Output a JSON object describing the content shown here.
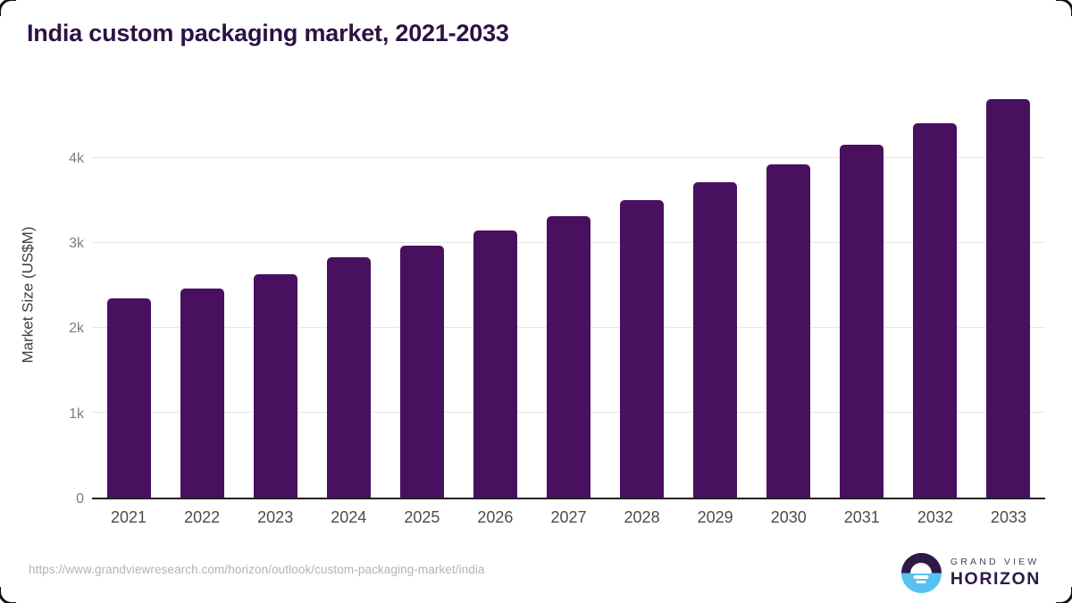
{
  "header": {
    "title": "India custom packaging market, 2021-2033"
  },
  "footer": {
    "source_url": "https://www.grandviewresearch.com/horizon/outlook/custom-packaging-market/india",
    "logo": {
      "top_text": "GRAND VIEW",
      "bottom_text": "HORIZON"
    }
  },
  "colors": {
    "bar": "#4a1060",
    "title": "#2d1245",
    "gridline": "#e7e7e7",
    "axis_line": "#222222",
    "logo_purple": "#2e1a47",
    "logo_blue": "#56c2f1"
  },
  "chart_data": {
    "type": "bar",
    "title": "India custom packaging market, 2021-2033",
    "xlabel": "",
    "ylabel": "Market Size (US$M)",
    "unit": "US$M",
    "categories": [
      "2021",
      "2022",
      "2023",
      "2024",
      "2025",
      "2026",
      "2027",
      "2028",
      "2029",
      "2030",
      "2031",
      "2032",
      "2033"
    ],
    "values": [
      2355,
      2470,
      2640,
      2835,
      2975,
      3150,
      3320,
      3505,
      3715,
      3930,
      4165,
      4415,
      4700
    ],
    "ylim": [
      0,
      4816
    ],
    "yticks": [
      {
        "value": 0,
        "label": "0"
      },
      {
        "value": 1000,
        "label": "1k"
      },
      {
        "value": 2000,
        "label": "2k"
      },
      {
        "value": 3000,
        "label": "3k"
      },
      {
        "value": 4000,
        "label": "4k"
      }
    ],
    "grid": "horizontal",
    "legend": "none"
  }
}
